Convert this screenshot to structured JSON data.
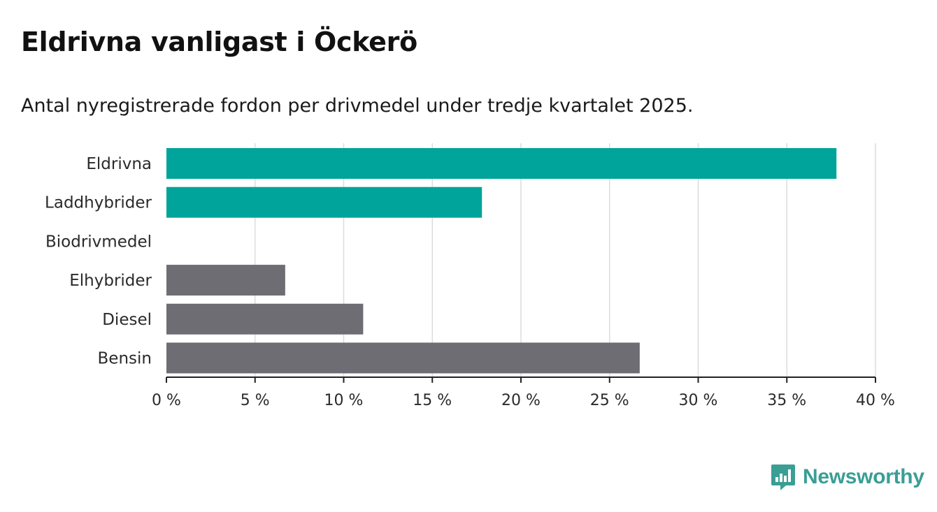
{
  "title": "Eldrivna vanligast i Öckerö",
  "subtitle": "Antal nyregistrerade fordon per drivmedel under tredje kvartalet 2025.",
  "brand": {
    "name": "Newsworthy",
    "color": "#3a9e95",
    "icon": "bar-chart-speech-icon"
  },
  "colors": {
    "highlight": "#00a49a",
    "other": "#6e6d73",
    "grid": "#dcdcdc",
    "axis": "#222222"
  },
  "chart_data": {
    "type": "bar",
    "orientation": "horizontal",
    "categories": [
      "Eldrivna",
      "Laddhybrider",
      "Biodrivmedel",
      "Elhybrider",
      "Diesel",
      "Bensin"
    ],
    "values": [
      37.8,
      17.8,
      0,
      6.7,
      11.1,
      26.7
    ],
    "highlighted": [
      true,
      true,
      false,
      false,
      false,
      false
    ],
    "xlim": [
      0,
      40
    ],
    "xticks": [
      0,
      5,
      10,
      15,
      20,
      25,
      30,
      35,
      40
    ],
    "tick_suffix": " %",
    "grid": true,
    "xlabel": "",
    "ylabel": ""
  }
}
